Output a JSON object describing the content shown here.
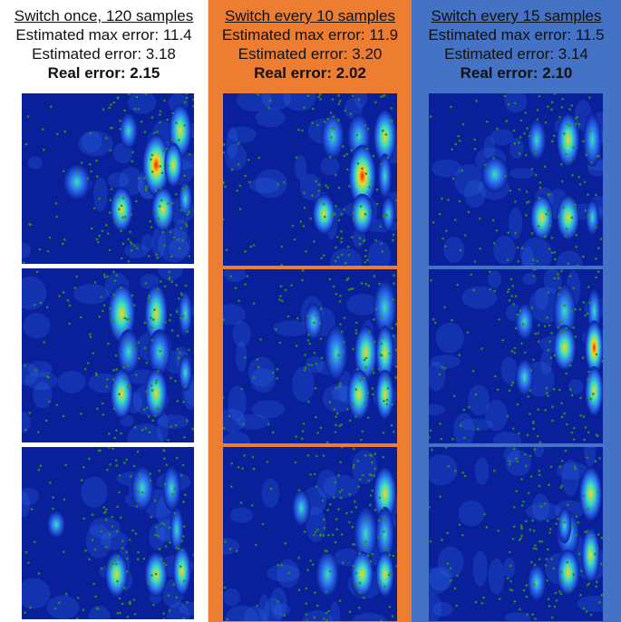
{
  "columns": [
    {
      "title": "Switch once, 120 samples",
      "max_error": "Estimated max error: 11.4",
      "est_error": "Estimated error: 3.18",
      "real_error": "Real error: 2.15",
      "bg_color": "#ffffff"
    },
    {
      "title": "Switch every 10 samples",
      "max_error": "Estimated max error: 11.9",
      "est_error": "Estimated error: 3.20",
      "real_error": "Real error: 2.02",
      "bg_color": "#ed7d31"
    },
    {
      "title": "Switch every 15 samples",
      "max_error": "Estimated max error: 11.5",
      "est_error": "Estimated error: 3.14",
      "real_error": "Real error: 2.10",
      "bg_color": "#4472c4"
    }
  ],
  "colors": {
    "map_background": "#0a1f9a",
    "sample_dot": "#2f8a1f",
    "hot": "#e3201b",
    "warm": "#ffd21a",
    "mid": "#39e0c0",
    "cool": "#2a6cf0"
  }
}
